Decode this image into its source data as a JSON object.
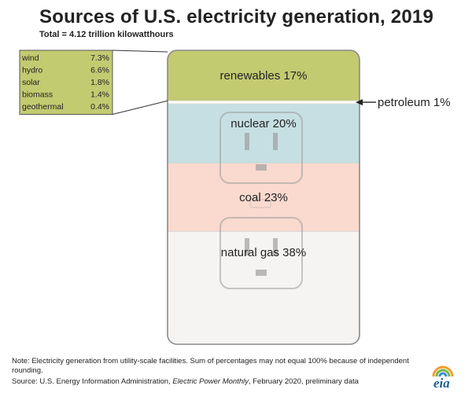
{
  "title": "Sources of U.S. electricity generation, 2019",
  "subtitle": "Total = 4.12 trillion kilowatthours",
  "colors": {
    "renewables": "#c3cb71",
    "petroleum": "#ffffff",
    "nuclear": "#c6dfe2",
    "coal": "#fad9cf",
    "natural_gas": "#f6f4f2",
    "breakdown_box": "#c3cb71",
    "frame": "#8a8a8a",
    "outlet": "#9a9a9a",
    "logo": "#1b5e96"
  },
  "chart_data": {
    "type": "bar",
    "stacked": true,
    "unit": "%",
    "segments": [
      {
        "key": "renewables",
        "label": "renewables 17%",
        "value": 17
      },
      {
        "key": "petroleum",
        "label": "petroleum 1%",
        "value": 1
      },
      {
        "key": "nuclear",
        "label": "nuclear 20%",
        "value": 20
      },
      {
        "key": "coal",
        "label": "coal 23%",
        "value": 23
      },
      {
        "key": "natural_gas",
        "label": "natural gas 38%",
        "value": 38
      }
    ],
    "renewables_breakdown": [
      {
        "name": "wind",
        "value_label": "7.3%",
        "value": 7.3
      },
      {
        "name": "hydro",
        "value_label": "6.6%",
        "value": 6.6
      },
      {
        "name": "solar",
        "value_label": "1.8%",
        "value": 1.8
      },
      {
        "name": "biomass",
        "value_label": "1.4%",
        "value": 1.4
      },
      {
        "name": "geothermal",
        "value_label": "0.4%",
        "value": 0.4
      }
    ]
  },
  "note": "Note: Electricity generation from utility-scale facilities. Sum of percentages may not equal 100% because of independent rounding.",
  "source": {
    "prefix": "Source: U.S. Energy Information Administration, ",
    "publication": "Electric Power Monthly",
    "suffix": ", February 2020, preliminary data"
  },
  "logo_text": "eia"
}
